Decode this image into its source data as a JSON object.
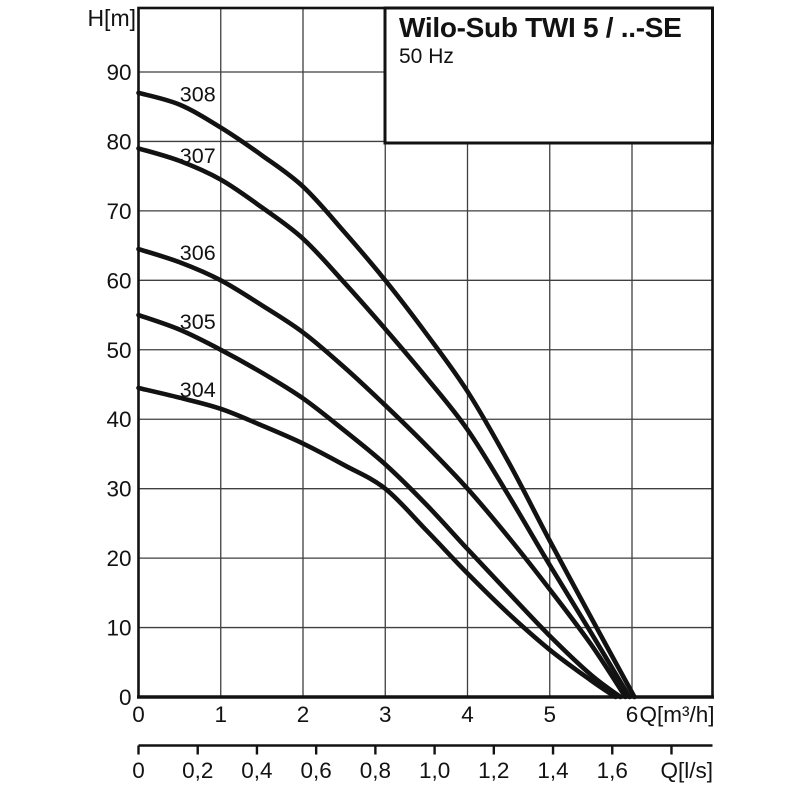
{
  "title_box": {
    "title": "Wilo-Sub TWI 5 / ..-SE",
    "subtitle": "50 Hz"
  },
  "colors": {
    "background": "#ffffff",
    "curve": "#121212",
    "grid": "#3f3f3f",
    "axis": "#121212",
    "box_border": "#121212",
    "text": "#121212"
  },
  "chart_data": {
    "type": "line",
    "title": "Wilo-Sub TWI 5 / ..-SE",
    "subtitle": "50 Hz",
    "ylabel": "H[m]",
    "xlabel": "Q[m³/h]",
    "xlabel2": "Q[l/s]",
    "xlim": [
      0,
      6.98
    ],
    "ylim": [
      0,
      99.2
    ],
    "grid": true,
    "legend_position": "inline-curve-labels",
    "y_ticks": [
      0,
      10,
      20,
      30,
      40,
      50,
      60,
      70,
      80,
      90
    ],
    "x_ticks": [
      0,
      1,
      2,
      3,
      4,
      5,
      6
    ],
    "x2_to_x_factor": 3.6,
    "x2_ticks": [
      {
        "v": 0.0,
        "label": "0"
      },
      {
        "v": 0.2,
        "label": "0,2"
      },
      {
        "v": 0.4,
        "label": "0,4"
      },
      {
        "v": 0.6,
        "label": "0,6"
      },
      {
        "v": 0.8,
        "label": "0,8"
      },
      {
        "v": 1.0,
        "label": "1,0"
      },
      {
        "v": 1.2,
        "label": "1,2"
      },
      {
        "v": 1.4,
        "label": "1,4"
      },
      {
        "v": 1.6,
        "label": "1,6"
      },
      {
        "v": 1.8,
        "label": ""
      }
    ],
    "series": [
      {
        "name": "308",
        "label": "308",
        "label_anchor": {
          "q": 0.72,
          "h": 86.8
        },
        "points": [
          [
            0,
            87
          ],
          [
            0.5,
            85.3
          ],
          [
            1,
            82
          ],
          [
            1.5,
            78
          ],
          [
            2,
            73.5
          ],
          [
            2.5,
            67
          ],
          [
            3,
            60
          ],
          [
            3.5,
            52.3
          ],
          [
            4,
            44
          ],
          [
            4.5,
            33.8
          ],
          [
            5,
            22.5
          ],
          [
            5.5,
            11.5
          ],
          [
            6.03,
            0
          ]
        ]
      },
      {
        "name": "307",
        "label": "307",
        "label_anchor": {
          "q": 0.72,
          "h": 78.0
        },
        "points": [
          [
            0,
            79
          ],
          [
            0.5,
            77.2
          ],
          [
            1,
            74.5
          ],
          [
            1.5,
            70.5
          ],
          [
            2,
            66
          ],
          [
            2.5,
            59.7
          ],
          [
            3,
            53
          ],
          [
            3.5,
            46
          ],
          [
            4,
            38.5
          ],
          [
            4.5,
            29
          ],
          [
            5,
            19
          ],
          [
            5.5,
            9.3
          ],
          [
            5.97,
            0
          ]
        ]
      },
      {
        "name": "306",
        "label": "306",
        "label_anchor": {
          "q": 0.72,
          "h": 64.0
        },
        "points": [
          [
            0,
            64.5
          ],
          [
            0.5,
            62.6
          ],
          [
            1,
            60
          ],
          [
            1.5,
            56.4
          ],
          [
            2,
            52.5
          ],
          [
            2.5,
            47.5
          ],
          [
            3,
            42
          ],
          [
            3.5,
            36.2
          ],
          [
            4,
            30
          ],
          [
            4.5,
            23
          ],
          [
            5,
            15.5
          ],
          [
            5.5,
            7.6
          ],
          [
            5.92,
            0
          ]
        ]
      },
      {
        "name": "305",
        "label": "305",
        "label_anchor": {
          "q": 0.72,
          "h": 54.1
        },
        "points": [
          [
            0,
            55
          ],
          [
            0.5,
            52.9
          ],
          [
            1,
            50
          ],
          [
            1.5,
            46.7
          ],
          [
            2,
            43
          ],
          [
            2.5,
            38.4
          ],
          [
            3,
            33.5
          ],
          [
            3.5,
            27.7
          ],
          [
            4,
            21.3
          ],
          [
            4.5,
            15
          ],
          [
            5,
            8.8
          ],
          [
            5.5,
            3.2
          ],
          [
            5.86,
            0
          ]
        ]
      },
      {
        "name": "304",
        "label": "304",
        "label_anchor": {
          "q": 0.72,
          "h": 44.3
        },
        "points": [
          [
            0,
            44.5
          ],
          [
            0.5,
            43.1
          ],
          [
            1,
            41.5
          ],
          [
            1.5,
            39.1
          ],
          [
            2,
            36.5
          ],
          [
            2.5,
            33.4
          ],
          [
            3,
            30
          ],
          [
            3.5,
            24
          ],
          [
            4,
            17.8
          ],
          [
            4.5,
            12
          ],
          [
            5,
            6.8
          ],
          [
            5.5,
            2.4
          ],
          [
            5.8,
            0
          ]
        ]
      }
    ]
  }
}
